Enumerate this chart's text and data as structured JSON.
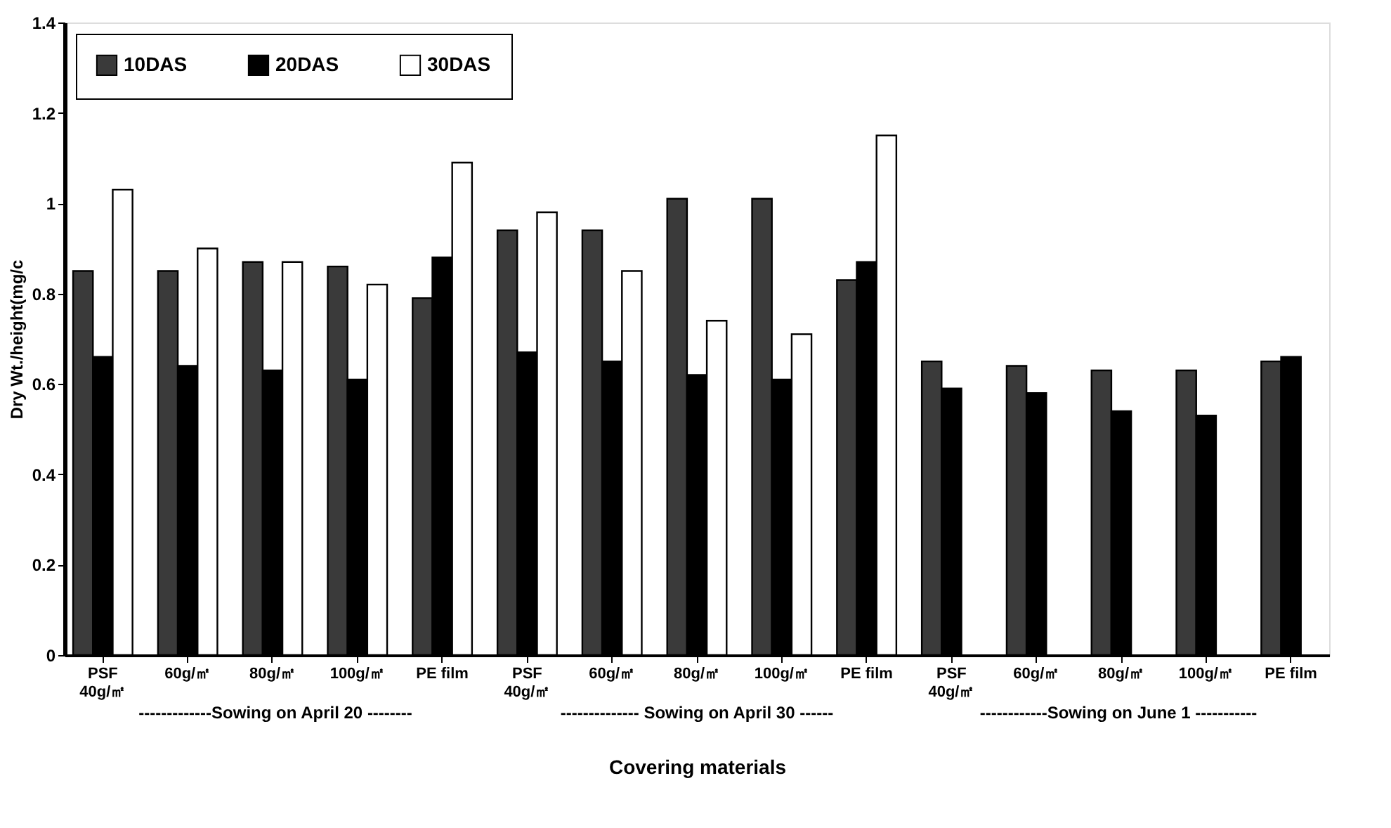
{
  "chart_data": {
    "type": "bar",
    "xlabel": "Covering materials",
    "ylabel": "Dry Wt./height(mg/c",
    "categories": [
      "PSF\n40g/㎡",
      "60g/㎡",
      "80g/㎡",
      "100g/㎡",
      "PE film",
      "PSF\n40g/㎡",
      "60g/㎡",
      "80g/㎡",
      "100g/㎡",
      "PE film",
      "PSF\n40g/㎡",
      "60g/㎡",
      "80g/㎡",
      "100g/㎡",
      "PE film"
    ],
    "series": [
      {
        "name": "10DAS",
        "color": "#3a3a3a",
        "values": [
          0.85,
          0.85,
          0.87,
          0.86,
          0.79,
          0.94,
          0.94,
          1.01,
          1.01,
          0.83,
          0.65,
          0.64,
          0.63,
          0.63,
          0.65
        ]
      },
      {
        "name": "20DAS",
        "color": "#000000",
        "values": [
          0.66,
          0.64,
          0.63,
          0.61,
          0.88,
          0.67,
          0.65,
          0.62,
          0.61,
          0.87,
          0.59,
          0.58,
          0.54,
          0.53,
          0.66
        ]
      },
      {
        "name": "30DAS",
        "color": "#ffffff",
        "values": [
          1.03,
          0.9,
          0.87,
          0.82,
          1.09,
          0.98,
          0.85,
          0.74,
          0.71,
          1.15,
          null,
          null,
          null,
          null,
          null
        ]
      }
    ],
    "ylim": [
      0,
      1.4
    ],
    "yticks": [
      0,
      0.2,
      0.4,
      0.6,
      0.8,
      1,
      1.2,
      1.4
    ],
    "grid": false,
    "legend": "top left",
    "annotations": [
      "-------------Sowing on April 20 --------",
      "-------------- Sowing on April 30 ------",
      "------------Sowing on June 1 -----------"
    ]
  }
}
